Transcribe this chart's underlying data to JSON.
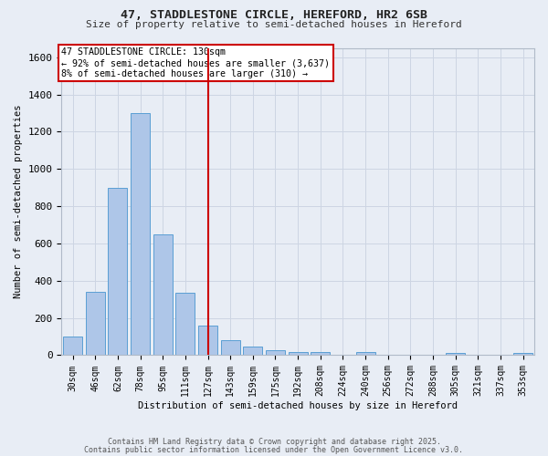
{
  "title_line1": "47, STADDLESTONE CIRCLE, HEREFORD, HR2 6SB",
  "title_line2": "Size of property relative to semi-detached houses in Hereford",
  "xlabel": "Distribution of semi-detached houses by size in Hereford",
  "ylabel": "Number of semi-detached properties",
  "categories": [
    "30sqm",
    "46sqm",
    "62sqm",
    "78sqm",
    "95sqm",
    "111sqm",
    "127sqm",
    "143sqm",
    "159sqm",
    "175sqm",
    "192sqm",
    "208sqm",
    "224sqm",
    "240sqm",
    "256sqm",
    "272sqm",
    "288sqm",
    "305sqm",
    "321sqm",
    "337sqm",
    "353sqm"
  ],
  "values": [
    100,
    340,
    900,
    1300,
    650,
    335,
    160,
    80,
    45,
    25,
    15,
    15,
    0,
    15,
    0,
    0,
    0,
    10,
    0,
    0,
    10
  ],
  "bar_color": "#aec6e8",
  "bar_edge_color": "#5a9fd4",
  "property_bin_index": 6,
  "vline_color": "#cc0000",
  "annotation_line1": "47 STADDLESTONE CIRCLE: 130sqm",
  "annotation_line2": "← 92% of semi-detached houses are smaller (3,637)",
  "annotation_line3": "8% of semi-detached houses are larger (310) →",
  "annotation_box_color": "#ffffff",
  "annotation_box_edge": "#cc0000",
  "ylim": [
    0,
    1650
  ],
  "yticks": [
    0,
    200,
    400,
    600,
    800,
    1000,
    1200,
    1400,
    1600
  ],
  "grid_color": "#cdd5e3",
  "background_color": "#e8edf5",
  "footer_line1": "Contains HM Land Registry data © Crown copyright and database right 2025.",
  "footer_line2": "Contains public sector information licensed under the Open Government Licence v3.0."
}
